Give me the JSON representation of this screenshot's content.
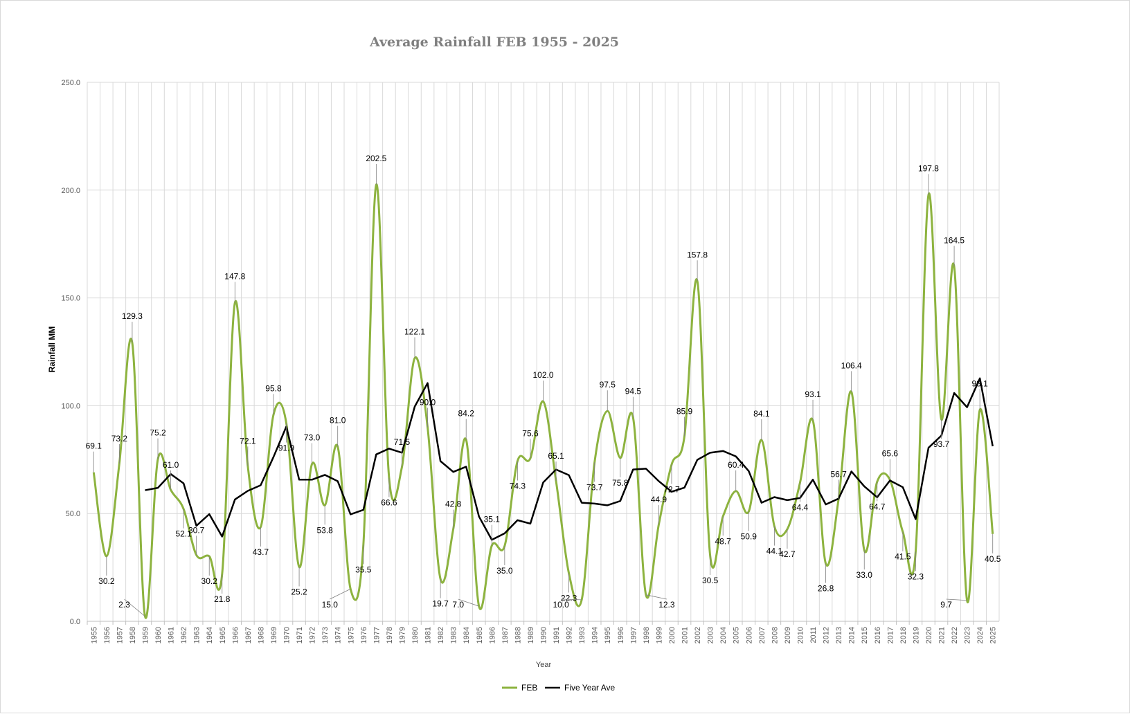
{
  "chart_data": {
    "type": "line",
    "title": "Average Rainfall FEB 1955 - 2025",
    "xlabel": "Year",
    "ylabel": "Rainfall MM",
    "ylim": [
      0,
      250
    ],
    "yticks": [
      "0.0",
      "50.0",
      "100.0",
      "150.0",
      "200.0",
      "250.0"
    ],
    "grid": true,
    "legend_position": "bottom",
    "categories": [
      "1955",
      "1956",
      "1957",
      "1958",
      "1959",
      "1960",
      "1961",
      "1962",
      "1963",
      "1964",
      "1965",
      "1966",
      "1967",
      "1968",
      "1969",
      "1970",
      "1971",
      "1972",
      "1973",
      "1974",
      "1975",
      "1976",
      "1977",
      "1978",
      "1979",
      "1980",
      "1981",
      "1982",
      "1983",
      "1984",
      "1985",
      "1986",
      "1987",
      "1988",
      "1989",
      "1990",
      "1991",
      "1992",
      "1993",
      "1994",
      "1995",
      "1996",
      "1997",
      "1998",
      "1999",
      "2000",
      "2001",
      "2002",
      "2003",
      "2004",
      "2005",
      "2006",
      "2007",
      "2008",
      "2009",
      "2010",
      "2011",
      "2012",
      "2013",
      "2014",
      "2015",
      "2016",
      "2017",
      "2018",
      "2019",
      "2020",
      "2021",
      "2022",
      "2023",
      "2024",
      "2025"
    ],
    "series": [
      {
        "name": "FEB",
        "color": "#8db33f",
        "smooth": true,
        "values": [
          69.1,
          30.2,
          73.2,
          129.3,
          2.3,
          75.2,
          61.0,
          52.1,
          30.7,
          30.2,
          21.8,
          147.8,
          72.1,
          43.7,
          95.8,
          91.9,
          25.2,
          73.0,
          53.8,
          81.0,
          15.0,
          35.5,
          202.5,
          66.6,
          71.5,
          122.1,
          90.0,
          19.7,
          42.8,
          84.2,
          7.0,
          35.1,
          35.0,
          74.3,
          75.6,
          102.0,
          65.1,
          22.3,
          10.0,
          73.7,
          97.5,
          75.8,
          94.5,
          12.3,
          44.9,
          72.7,
          85.9,
          157.8,
          30.5,
          48.7,
          60.4,
          50.9,
          84.1,
          44.1,
          42.7,
          64.4,
          93.1,
          26.8,
          56.7,
          106.4,
          33.0,
          64.7,
          65.6,
          41.5,
          32.3,
          197.8,
          93.7,
          164.5,
          9.7,
          98.1,
          40.5
        ]
      },
      {
        "name": "Five Year Ave",
        "color": "#000000",
        "smooth": false,
        "values": [
          null,
          null,
          null,
          null,
          60.8,
          61.9,
          68.3,
          64.0,
          44.3,
          49.7,
          39.3,
          56.5,
          60.5,
          63.1,
          76.2,
          90.3,
          65.7,
          65.7,
          67.9,
          65.0,
          49.6,
          51.7,
          77.4,
          80.1,
          78.2,
          99.6,
          110.5,
          74.3,
          69.3,
          71.7,
          48.6,
          37.8,
          40.8,
          46.9,
          45.3,
          64.4,
          70.4,
          67.8,
          55.0,
          54.6,
          53.8,
          55.8,
          70.4,
          70.8,
          65.0,
          60.1,
          62.0,
          74.9,
          78.2,
          79.0,
          76.5,
          69.7,
          55.0,
          57.6,
          56.2,
          57.2,
          65.7,
          54.2,
          56.9,
          69.5,
          62.6,
          57.5,
          65.3,
          62.2,
          47.4,
          80.5,
          86.1,
          105.9,
          99.3,
          112.7,
          81.2
        ]
      }
    ],
    "data_labels": [
      "69.1",
      "30.2",
      "73.2",
      "129.3",
      "2.3",
      "75.2",
      "61.0",
      "52.1",
      "30.7",
      "30.2",
      "21.8",
      "147.8",
      "72.1",
      "43.7",
      "95.8",
      "91.9",
      "25.2",
      "73.0",
      "53.8",
      "81.0",
      "15.0",
      "35.5",
      "202.5",
      "66.6",
      "71.5",
      "122.1",
      "90.0",
      "19.7",
      "42.8",
      "84.2",
      "7.0",
      "35.1",
      "35.0",
      "74.3",
      "75.6",
      "102.0",
      "65.1",
      "22.3",
      "10.0",
      "73.7",
      "97.5",
      "75.8",
      "94.5",
      "12.3",
      "44.9",
      "72.7",
      "85.9",
      "157.8",
      "30.5",
      "48.7",
      "60.4",
      "50.9",
      "84.1",
      "44.1",
      "42.7",
      "64.4",
      "93.1",
      "26.8",
      "56.7",
      "106.4",
      "33.0",
      "64.7",
      "65.6",
      "41.5",
      "32.3",
      "197.8",
      "93.7",
      "164.5",
      "9.7",
      "98.1",
      "40.5"
    ]
  }
}
